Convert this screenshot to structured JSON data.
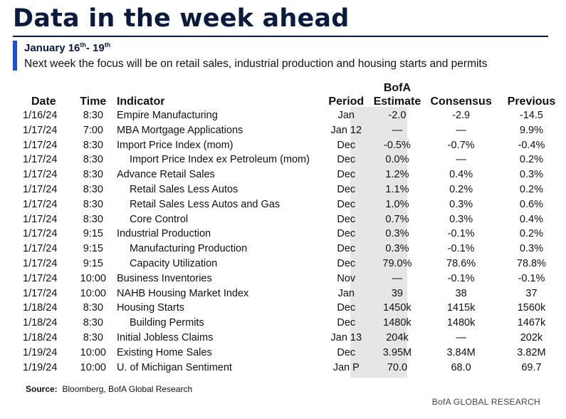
{
  "title": "Data in the week ahead",
  "subtitle": {
    "start": "January 16",
    "start_sup": "th",
    "sep": "- 19",
    "end_sup": "th"
  },
  "description": "Next week the focus will be on retail sales, industrial production and housing starts and permits",
  "headers": {
    "date": "Date",
    "time": "Time",
    "indicator": "Indicator",
    "period": "Period",
    "estimate_line1": "BofA",
    "estimate_line2": "Estimate",
    "consensus": "Consensus",
    "previous": "Previous"
  },
  "rows": [
    {
      "date": "1/16/24",
      "time": "8:30",
      "indicator": "Empire Manufacturing",
      "indent": false,
      "period": "Jan",
      "estimate": "-2.0",
      "consensus": "-2.9",
      "previous": "-14.5"
    },
    {
      "date": "1/17/24",
      "time": "7:00",
      "indicator": "MBA Mortgage Applications",
      "indent": false,
      "period": "Jan 12",
      "estimate": "—",
      "consensus": "—",
      "previous": "9.9%"
    },
    {
      "date": "1/17/24",
      "time": "8:30",
      "indicator": "Import Price Index (mom)",
      "indent": false,
      "period": "Dec",
      "estimate": "-0.5%",
      "consensus": "-0.7%",
      "previous": "-0.4%"
    },
    {
      "date": "1/17/24",
      "time": "8:30",
      "indicator": "Import Price Index ex Petroleum (mom)",
      "indent": true,
      "period": "Dec",
      "estimate": "0.0%",
      "consensus": "—",
      "previous": "0.2%"
    },
    {
      "date": "1/17/24",
      "time": "8:30",
      "indicator": "Advance Retail Sales",
      "indent": false,
      "period": "Dec",
      "estimate": "1.2%",
      "consensus": "0.4%",
      "previous": "0.3%"
    },
    {
      "date": "1/17/24",
      "time": "8:30",
      "indicator": "Retail Sales Less Autos",
      "indent": true,
      "period": "Dec",
      "estimate": "1.1%",
      "consensus": "0.2%",
      "previous": "0.2%"
    },
    {
      "date": "1/17/24",
      "time": "8:30",
      "indicator": "Retail Sales Less Autos and Gas",
      "indent": true,
      "period": "Dec",
      "estimate": "1.0%",
      "consensus": "0.3%",
      "previous": "0.6%"
    },
    {
      "date": "1/17/24",
      "time": "8:30",
      "indicator": "Core Control",
      "indent": true,
      "period": "Dec",
      "estimate": "0.7%",
      "consensus": "0.3%",
      "previous": "0.4%"
    },
    {
      "date": "1/17/24",
      "time": "9:15",
      "indicator": "Industrial Production",
      "indent": false,
      "period": "Dec",
      "estimate": "0.3%",
      "consensus": "-0.1%",
      "previous": "0.2%"
    },
    {
      "date": "1/17/24",
      "time": "9:15",
      "indicator": "Manufacturing Production",
      "indent": true,
      "period": "Dec",
      "estimate": "0.3%",
      "consensus": "-0.1%",
      "previous": "0.3%"
    },
    {
      "date": "1/17/24",
      "time": "9:15",
      "indicator": "Capacity Utilization",
      "indent": true,
      "period": "Dec",
      "estimate": "79.0%",
      "consensus": "78.6%",
      "previous": "78.8%"
    },
    {
      "date": "1/17/24",
      "time": "10:00",
      "indicator": "Business Inventories",
      "indent": false,
      "period": "Nov",
      "estimate": "—",
      "consensus": "-0.1%",
      "previous": "-0.1%"
    },
    {
      "date": "1/17/24",
      "time": "10:00",
      "indicator": "NAHB Housing Market Index",
      "indent": false,
      "period": "Jan",
      "estimate": "39",
      "consensus": "38",
      "previous": "37"
    },
    {
      "date": "1/18/24",
      "time": "8:30",
      "indicator": "Housing Starts",
      "indent": false,
      "period": "Dec",
      "estimate": "1450k",
      "consensus": "1415k",
      "previous": "1560k"
    },
    {
      "date": "1/18/24",
      "time": "8:30",
      "indicator": "Building Permits",
      "indent": true,
      "period": "Dec",
      "estimate": "1480k",
      "consensus": "1480k",
      "previous": "1467k"
    },
    {
      "date": "1/18/24",
      "time": "8:30",
      "indicator": "Initial Jobless Claims",
      "indent": false,
      "period": "Jan 13",
      "estimate": "204k",
      "consensus": "—",
      "previous": "202k"
    },
    {
      "date": "1/19/24",
      "time": "10:00",
      "indicator": "Existing Home Sales",
      "indent": false,
      "period": "Dec",
      "estimate": "3.95M",
      "consensus": "3.84M",
      "previous": "3.82M"
    },
    {
      "date": "1/19/24",
      "time": "10:00",
      "indicator": "U. of Michigan Sentiment",
      "indent": false,
      "period": "Jan P",
      "estimate": "70.0",
      "consensus": "68.0",
      "previous": "69.7"
    }
  ],
  "source": {
    "label": "Source:",
    "text": "Bloomberg, BofA Global Research"
  },
  "brand": "BofA GLOBAL RESEARCH",
  "colors": {
    "title": "#0b1a3f",
    "accent_bar": "#1b4fd6",
    "estimate_shade": "#e6e6e6"
  }
}
